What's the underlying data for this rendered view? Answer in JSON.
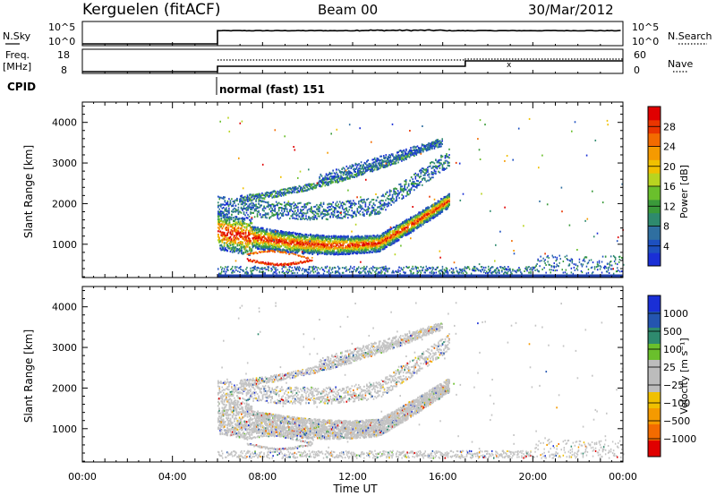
{
  "header": {
    "title": "Kerguelen (fitACF)",
    "beam": "Beam 00",
    "date": "30/Mar/2012"
  },
  "panels": {
    "nsky": {
      "left_label": "N.Sky",
      "left_top": "10^5",
      "left_bottom": "10^0",
      "right_top": "10^5",
      "right_bottom": "10^0",
      "right_label": "N.Search"
    },
    "freq": {
      "left_label_1": "Freq.",
      "left_label_2": "[MHz]",
      "left_top": "18",
      "left_bottom": "8",
      "right_top": "60",
      "right_bottom": "0",
      "right_label": "Nave"
    },
    "cpid": {
      "label": "CPID",
      "mode_text": "normal (fast) 151"
    }
  },
  "chart_data": [
    {
      "type": "heatmap",
      "name_printed": "",
      "ylabel": "Slant Range [km]",
      "y_ticks": [
        "1000",
        "2000",
        "3000",
        "4000"
      ],
      "ylim": [
        180,
        4500
      ],
      "xlim_hours": [
        0,
        24
      ],
      "colorbar": {
        "label": "Power [dB]",
        "ticks": [
          "4",
          "8",
          "12",
          "16",
          "20",
          "24",
          "28"
        ],
        "colors": [
          "#1a2fd6",
          "#1d50c0",
          "#2f6fa0",
          "#2e8a6e",
          "#3a9a3a",
          "#6abf2c",
          "#b8d420",
          "#f0c000",
          "#f59a00",
          "#f36b00",
          "#ea3500",
          "#e00000"
        ]
      },
      "features": [
        {
          "desc": "main echo band",
          "range_start_km": 1000,
          "range_end_km": 1700,
          "time_start_h": 6.0,
          "time_end_h": 16.2
        }
      ]
    },
    {
      "type": "heatmap",
      "ylabel": "Slant Range [km]",
      "y_ticks": [
        "1000",
        "2000",
        "3000",
        "4000"
      ],
      "ylim": [
        180,
        4500
      ],
      "xlim_hours": [
        0,
        24
      ],
      "x_ticks": [
        "00:00",
        "04:00",
        "08:00",
        "12:00",
        "16:00",
        "20:00",
        "00:00"
      ],
      "xlabel": "Time UT",
      "colorbar": {
        "label": "Velocity [m s⁻¹]",
        "ticks": [
          "1000",
          "500",
          "100",
          "25",
          "−25",
          "−100",
          "−500",
          "−1000"
        ],
        "colors": [
          "#1a2fd6",
          "#2455b0",
          "#2e8a6e",
          "#6abf2c",
          "#bcbcbc",
          "#bcbcbc",
          "#f0c000",
          "#f59a00",
          "#f36b00",
          "#e00000"
        ]
      }
    }
  ],
  "colors": {
    "ground_line": "#1f3fa8",
    "gray_scatter": "#c4c4c4"
  }
}
